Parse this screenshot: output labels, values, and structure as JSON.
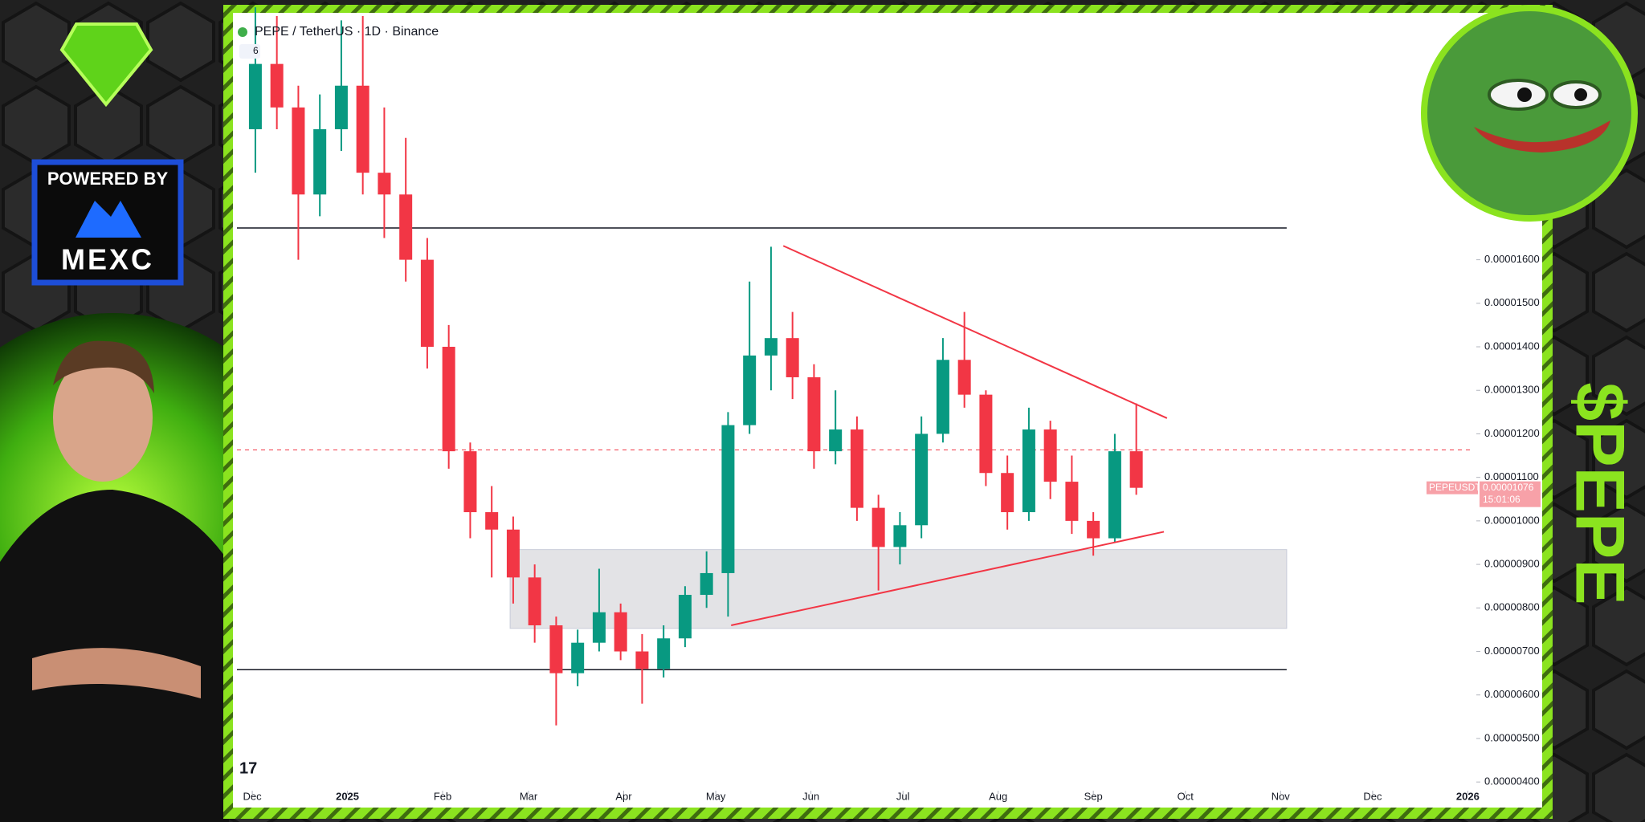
{
  "chart_data": {
    "type": "candlestick",
    "title": "PEPE / TetherUS · 1D · Binance",
    "badge": "6",
    "symbol": "PEPEUSDT",
    "countdown": "15:01:06",
    "last_price": 1.076e-05,
    "up_color": "#089981",
    "down_color": "#f23645",
    "xlim": [
      -5,
      398
    ],
    "xticks": [
      {
        "value": 0,
        "label": "Dec"
      },
      {
        "value": 31,
        "label": "2025"
      },
      {
        "value": 62,
        "label": "Feb"
      },
      {
        "value": 90,
        "label": "Mar"
      },
      {
        "value": 121,
        "label": "Apr"
      },
      {
        "value": 151,
        "label": "May"
      },
      {
        "value": 182,
        "label": "Jun"
      },
      {
        "value": 212,
        "label": "Jul"
      },
      {
        "value": 243,
        "label": "Aug"
      },
      {
        "value": 274,
        "label": "Sep"
      },
      {
        "value": 304,
        "label": "Oct"
      },
      {
        "value": 335,
        "label": "Nov"
      },
      {
        "value": 365,
        "label": "Dec"
      },
      {
        "value": 396,
        "label": "2026"
      }
    ],
    "ylim": [
      3.8e-06,
      2.16e-05
    ],
    "yticks": [
      {
        "value": 4e-06,
        "label": "0.00000400"
      },
      {
        "value": 5e-06,
        "label": "0.00000500"
      },
      {
        "value": 6e-06,
        "label": "0.00000600"
      },
      {
        "value": 7e-06,
        "label": "0.00000700"
      },
      {
        "value": 8e-06,
        "label": "0.00000800"
      },
      {
        "value": 9e-06,
        "label": "0.00000900"
      },
      {
        "value": 1e-05,
        "label": "0.00001000"
      },
      {
        "value": 1.1e-05,
        "label": "0.00001100"
      },
      {
        "value": 1.2e-05,
        "label": "0.00001200"
      },
      {
        "value": 1.3e-05,
        "label": "0.00001300"
      },
      {
        "value": 1.4e-05,
        "label": "0.00001400"
      },
      {
        "value": 1.5e-05,
        "label": "0.00001500"
      },
      {
        "value": 1.6e-05,
        "label": "0.00001600"
      }
    ],
    "x": [
      1,
      8,
      15,
      22,
      29,
      36,
      43,
      50,
      57,
      64,
      71,
      78,
      85,
      92,
      99,
      106,
      113,
      120,
      127,
      134,
      141,
      148,
      155,
      162,
      169,
      176,
      183,
      190,
      197,
      204,
      211,
      218,
      225,
      232,
      239,
      246,
      253,
      260,
      267,
      274,
      281,
      288
    ],
    "open": [
      1.9e-05,
      2.05e-05,
      1.95e-05,
      1.75e-05,
      1.9e-05,
      2e-05,
      1.8e-05,
      1.75e-05,
      1.6e-05,
      1.4e-05,
      1.16e-05,
      1.02e-05,
      9.8e-06,
      8.7e-06,
      7.6e-06,
      6.5e-06,
      7.2e-06,
      7.9e-06,
      7e-06,
      6.6e-06,
      7.3e-06,
      8.3e-06,
      8.8e-06,
      1.22e-05,
      1.38e-05,
      1.42e-05,
      1.33e-05,
      1.16e-05,
      1.21e-05,
      1.03e-05,
      9.4e-06,
      9.9e-06,
      1.2e-05,
      1.37e-05,
      1.29e-05,
      1.11e-05,
      1.02e-05,
      1.21e-05,
      1.09e-05,
      1e-05,
      9.6e-06,
      1.16e-05
    ],
    "high": [
      2.18e-05,
      2.16e-05,
      2e-05,
      1.98e-05,
      2.15e-05,
      2.16e-05,
      1.95e-05,
      1.88e-05,
      1.65e-05,
      1.45e-05,
      1.18e-05,
      1.08e-05,
      1.01e-05,
      9e-06,
      7.8e-06,
      7.5e-06,
      8.9e-06,
      8.1e-06,
      7.4e-06,
      7.6e-06,
      8.5e-06,
      9.3e-06,
      1.25e-05,
      1.55e-05,
      1.63e-05,
      1.48e-05,
      1.36e-05,
      1.3e-05,
      1.24e-05,
      1.06e-05,
      1.02e-05,
      1.24e-05,
      1.42e-05,
      1.48e-05,
      1.3e-05,
      1.15e-05,
      1.26e-05,
      1.23e-05,
      1.15e-05,
      1.02e-05,
      1.2e-05,
      1.27e-05
    ],
    "low": [
      1.8e-05,
      1.9e-05,
      1.6e-05,
      1.7e-05,
      1.85e-05,
      1.75e-05,
      1.65e-05,
      1.55e-05,
      1.35e-05,
      1.12e-05,
      9.6e-06,
      8.7e-06,
      8.1e-06,
      7.2e-06,
      5.3e-06,
      6.2e-06,
      7e-06,
      6.8e-06,
      5.8e-06,
      6.4e-06,
      7.1e-06,
      8e-06,
      7.8e-06,
      1.2e-05,
      1.3e-05,
      1.28e-05,
      1.12e-05,
      1.13e-05,
      1e-05,
      8.4e-06,
      9e-06,
      9.6e-06,
      1.18e-05,
      1.26e-05,
      1.08e-05,
      9.8e-06,
      1e-05,
      1.05e-05,
      9.7e-06,
      9.2e-06,
      9.5e-06,
      1.06e-05
    ],
    "close": [
      2.05e-05,
      1.95e-05,
      1.75e-05,
      1.9e-05,
      2e-05,
      1.8e-05,
      1.75e-05,
      1.6e-05,
      1.4e-05,
      1.16e-05,
      1.02e-05,
      9.8e-06,
      8.7e-06,
      7.6e-06,
      6.5e-06,
      7.2e-06,
      7.9e-06,
      7e-06,
      6.6e-06,
      7.3e-06,
      8.3e-06,
      8.8e-06,
      1.22e-05,
      1.38e-05,
      1.42e-05,
      1.33e-05,
      1.16e-05,
      1.21e-05,
      1.03e-05,
      9.4e-06,
      9.9e-06,
      1.2e-05,
      1.37e-05,
      1.29e-05,
      1.11e-05,
      1.02e-05,
      1.21e-05,
      1.09e-05,
      1e-05,
      9.6e-06,
      1.16e-05,
      1.076e-05
    ],
    "horizontal_lines": [
      1.673e-05,
      6.58e-06
    ],
    "horizontal_lines_x": [
      -5,
      337
    ],
    "dashed_line": 1.163e-05,
    "zone": {
      "x": [
        84,
        337
      ],
      "y": [
        7.53e-06,
        9.34e-06
      ]
    },
    "trendlines": [
      {
        "x": [
          173,
          298
        ],
        "y": [
          1.632e-05,
          1.236e-05
        ]
      },
      {
        "x": [
          156,
          297
        ],
        "y": [
          7.6e-06,
          9.75e-06
        ]
      }
    ]
  },
  "branding": {
    "powered_by": "POWERED BY",
    "exchange": "MEXC",
    "ticker": "$PEPE",
    "tv_logo": "17"
  }
}
